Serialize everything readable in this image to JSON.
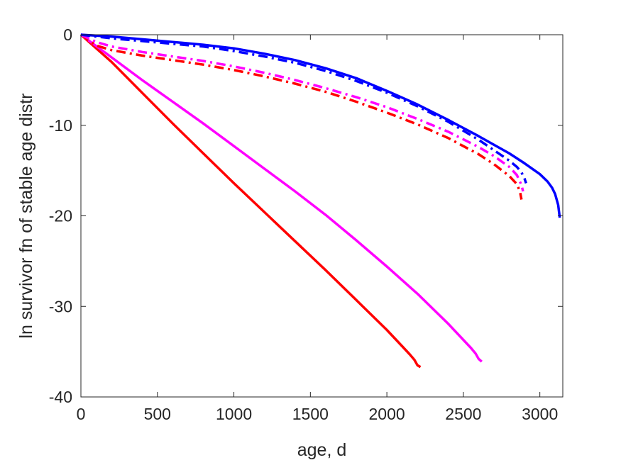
{
  "chart_data": {
    "type": "line",
    "title": "",
    "xlabel": "age, d",
    "ylabel": "ln survivor fn of stable age distr",
    "xlim": [
      0,
      3150
    ],
    "ylim": [
      -40,
      0
    ],
    "xticks": [
      0,
      500,
      1000,
      1500,
      2000,
      2500,
      3000
    ],
    "yticks": [
      0,
      -10,
      -20,
      -30,
      -40
    ],
    "grid": false,
    "legend": "none",
    "series": [
      {
        "color": "#ff0000",
        "style": "solid",
        "x": [
          0,
          200,
          400,
          600,
          800,
          1000,
          1200,
          1400,
          1600,
          1800,
          2000,
          2100,
          2150,
          2180,
          2200,
          2220
        ],
        "y": [
          0,
          -3.0,
          -6.4,
          -9.8,
          -13.1,
          -16.4,
          -19.6,
          -22.8,
          -26.0,
          -29.3,
          -32.6,
          -34.4,
          -35.3,
          -35.9,
          -36.5,
          -36.7
        ]
      },
      {
        "color": "#ff00ff",
        "style": "solid",
        "x": [
          0,
          200,
          400,
          600,
          800,
          1000,
          1200,
          1400,
          1600,
          1800,
          2000,
          2200,
          2400,
          2500,
          2550,
          2580,
          2600,
          2620
        ],
        "y": [
          0,
          -2.5,
          -5.0,
          -7.4,
          -9.8,
          -12.3,
          -14.8,
          -17.3,
          -19.9,
          -22.7,
          -25.6,
          -28.6,
          -31.9,
          -33.7,
          -34.6,
          -35.2,
          -35.8,
          -36.1
        ]
      },
      {
        "color": "#ff0000",
        "style": "dashdot",
        "x": [
          0,
          100,
          200,
          400,
          600,
          800,
          1000,
          1200,
          1400,
          1600,
          1800,
          2000,
          2200,
          2400,
          2600,
          2700,
          2800,
          2850,
          2870,
          2880
        ],
        "y": [
          0,
          -1.2,
          -1.7,
          -2.3,
          -2.8,
          -3.3,
          -3.9,
          -4.6,
          -5.4,
          -6.3,
          -7.4,
          -8.6,
          -9.9,
          -11.4,
          -13.2,
          -14.3,
          -15.6,
          -16.5,
          -17.3,
          -18.2
        ]
      },
      {
        "color": "#ff00ff",
        "style": "dashdot",
        "x": [
          0,
          100,
          200,
          400,
          600,
          800,
          1000,
          1200,
          1400,
          1600,
          1800,
          2000,
          2200,
          2400,
          2600,
          2700,
          2800,
          2850,
          2880,
          2890
        ],
        "y": [
          0,
          -0.8,
          -1.3,
          -1.9,
          -2.4,
          -2.9,
          -3.5,
          -4.2,
          -5.0,
          -5.9,
          -6.9,
          -8.0,
          -9.3,
          -10.7,
          -12.4,
          -13.4,
          -14.6,
          -15.5,
          -16.6,
          -17.3
        ]
      },
      {
        "color": "#0000ff",
        "style": "dashdot",
        "x": [
          0,
          200,
          400,
          600,
          800,
          1000,
          1200,
          1400,
          1600,
          1800,
          2000,
          2200,
          2400,
          2600,
          2800,
          2850,
          2880,
          2900,
          2910
        ],
        "y": [
          0,
          -0.4,
          -0.7,
          -1.0,
          -1.3,
          -1.8,
          -2.4,
          -3.1,
          -4.0,
          -5.1,
          -6.4,
          -7.9,
          -9.6,
          -11.6,
          -13.9,
          -14.6,
          -15.2,
          -15.9,
          -16.4
        ]
      },
      {
        "color": "#0000ff",
        "style": "solid",
        "x": [
          0,
          200,
          400,
          600,
          800,
          1000,
          1200,
          1400,
          1600,
          1800,
          2000,
          2200,
          2400,
          2600,
          2800,
          2900,
          3000,
          3050,
          3080,
          3100,
          3120,
          3130
        ],
        "y": [
          0,
          -0.2,
          -0.5,
          -0.8,
          -1.1,
          -1.5,
          -2.1,
          -2.8,
          -3.7,
          -4.8,
          -6.2,
          -7.7,
          -9.4,
          -11.2,
          -13.1,
          -14.2,
          -15.4,
          -16.2,
          -16.9,
          -17.6,
          -18.8,
          -20.2
        ]
      }
    ]
  }
}
